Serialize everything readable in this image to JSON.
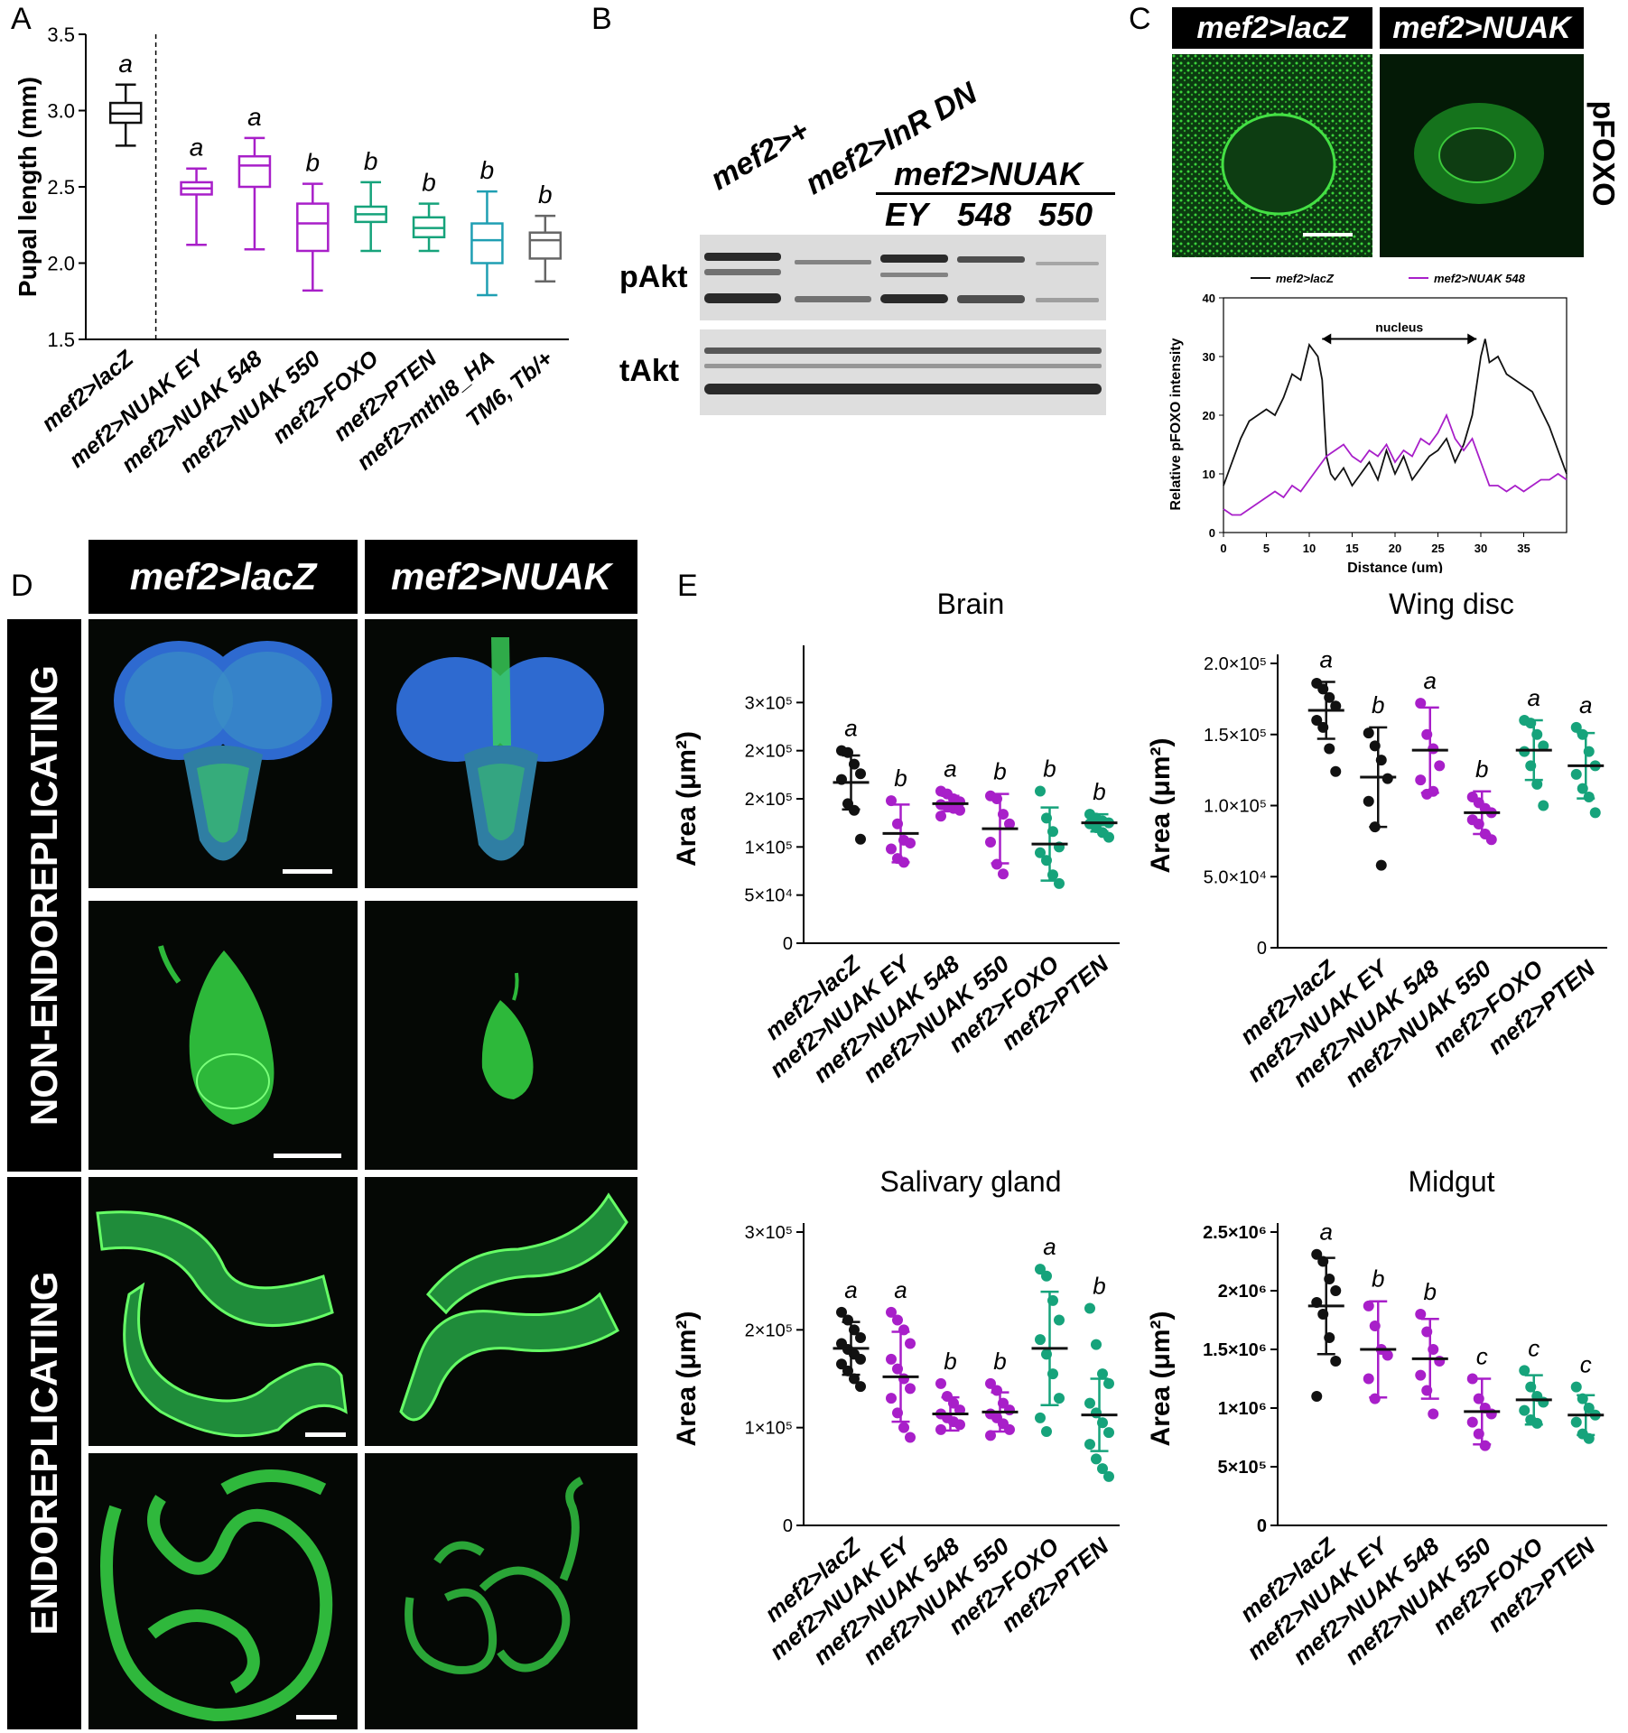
{
  "panel_letters": [
    "A",
    "B",
    "C",
    "D",
    "E"
  ],
  "colors": {
    "black": "#111111",
    "purple": "#a81fc9",
    "green": "#16a37b",
    "teal": "#1f9fb3",
    "grey": "#666666"
  },
  "panelB": {
    "lanes": [
      "mef2>+",
      "mef2>InR DN"
    ],
    "group_label": "mef2>NUAK",
    "sublanes": [
      "EY",
      "548",
      "550"
    ],
    "rows": [
      "pAkt",
      "tAkt"
    ]
  },
  "panelC": {
    "headers": [
      "mef2>lacZ",
      "mef2>NUAK"
    ],
    "side_label": "pFOXO",
    "nucleus_label": "nucleus"
  },
  "panelD": {
    "headers": [
      "mef2>lacZ",
      "mef2>NUAK"
    ],
    "row_groups": [
      "NON-ENDOREPLICATING",
      "ENDOREPLICATING"
    ]
  },
  "chart_data": [
    {
      "id": "A",
      "type": "box",
      "xlabel": "",
      "ylabel": "Pupal length (mm)",
      "ylim": [
        1.5,
        3.5
      ],
      "yticks": [
        "1.5",
        "2.0",
        "2.5",
        "3.0",
        "3.5"
      ],
      "categories": [
        "mef2>lacZ",
        "mef2>NUAK EY",
        "mef2>NUAK 548",
        "mef2>NUAK 550",
        "mef2>FOXO",
        "mef2>PTEN",
        "mef2>mthl8_HA",
        "TM6, Tb/+"
      ],
      "letters": [
        "a",
        "a",
        "a",
        "b",
        "b",
        "b",
        "b",
        "b"
      ],
      "color_keys": [
        "black",
        "purple",
        "purple",
        "purple",
        "green",
        "green",
        "teal",
        "grey"
      ],
      "boxes": [
        {
          "min": 2.77,
          "q1": 2.92,
          "median": 2.98,
          "q3": 3.05,
          "max": 3.17
        },
        {
          "min": 2.12,
          "q1": 2.45,
          "median": 2.49,
          "q3": 2.53,
          "max": 2.62
        },
        {
          "min": 2.09,
          "q1": 2.5,
          "median": 2.64,
          "q3": 2.7,
          "max": 2.82
        },
        {
          "min": 1.82,
          "q1": 2.08,
          "median": 2.26,
          "q3": 2.39,
          "max": 2.52
        },
        {
          "min": 2.08,
          "q1": 2.27,
          "median": 2.32,
          "q3": 2.37,
          "max": 2.53
        },
        {
          "min": 2.08,
          "q1": 2.17,
          "median": 2.23,
          "q3": 2.3,
          "max": 2.39
        },
        {
          "min": 1.79,
          "q1": 2.0,
          "median": 2.15,
          "q3": 2.26,
          "max": 2.47
        },
        {
          "min": 1.88,
          "q1": 2.03,
          "median": 2.15,
          "q3": 2.2,
          "max": 2.31
        }
      ]
    },
    {
      "id": "C",
      "type": "line",
      "xlabel": "Distance (um)",
      "ylabel": "Relative pFOXO intensity",
      "xlim": [
        0,
        40
      ],
      "ylim": [
        0,
        40
      ],
      "xticks": [
        "0",
        "5",
        "10",
        "15",
        "20",
        "25",
        "30",
        "35"
      ],
      "yticks": [
        "0",
        "10",
        "20",
        "30",
        "40"
      ],
      "series": [
        {
          "name": "mef2>lacZ",
          "color_key": "black",
          "x": [
            0,
            1,
            2,
            3,
            4,
            5,
            6,
            7,
            8,
            9,
            10,
            10.5,
            11,
            11.5,
            12,
            12.5,
            13,
            14,
            15,
            16,
            17,
            18,
            19,
            20,
            21,
            22,
            23,
            24,
            25,
            26,
            27,
            28,
            29,
            30,
            30.5,
            31,
            32,
            33,
            34,
            35,
            36,
            37,
            38,
            39,
            40
          ],
          "y": [
            8,
            12,
            16,
            19,
            20,
            21,
            20,
            23,
            27,
            26,
            32,
            31,
            30,
            26,
            13,
            10,
            9,
            11,
            8,
            10,
            12,
            9,
            14,
            10,
            13,
            9,
            11,
            13,
            14,
            16,
            12,
            15,
            20,
            30,
            33,
            29,
            30,
            27,
            26,
            25,
            24,
            21,
            18,
            14,
            10
          ]
        },
        {
          "name": "mef2>NUAK 548",
          "color_key": "purple",
          "x": [
            0,
            1,
            2,
            3,
            4,
            5,
            6,
            7,
            8,
            9,
            10,
            11,
            12,
            13,
            14,
            15,
            16,
            17,
            18,
            19,
            20,
            21,
            22,
            23,
            24,
            25,
            26,
            27,
            28,
            29,
            30,
            31,
            32,
            33,
            34,
            35,
            36,
            37,
            38,
            39,
            40
          ],
          "y": [
            4,
            3,
            3,
            4,
            5,
            6,
            7,
            6,
            8,
            7,
            9,
            11,
            13,
            14,
            15,
            13,
            12,
            14,
            13,
            15,
            12,
            14,
            13,
            16,
            15,
            17,
            20,
            16,
            14,
            16,
            12,
            8,
            8,
            7,
            8,
            7,
            8,
            9,
            9,
            10,
            9
          ]
        }
      ]
    },
    {
      "id": "E-brain",
      "type": "scatter",
      "title": "Brain",
      "ylabel": "Area (μm²)",
      "ylim": [
        0,
        300000
      ],
      "yticks": [
        "0",
        "5×10⁴",
        "1×10⁵",
        "2×10⁵",
        "2×10⁵",
        "3×10⁵"
      ],
      "ytick_values": [
        0,
        50000,
        100000,
        150000,
        200000,
        250000
      ],
      "categories": [
        "mef2>lacZ",
        "mef2>NUAK EY",
        "mef2>NUAK 548",
        "mef2>NUAK 550",
        "mef2>FOXO",
        "mef2>PTEN"
      ],
      "letters": [
        "a",
        "b",
        "a",
        "b",
        "b",
        "b"
      ],
      "color_keys": [
        "black",
        "purple",
        "purple",
        "purple",
        "green",
        "green"
      ],
      "means": [
        167000,
        114000,
        145000,
        119000,
        103000,
        125000
      ],
      "sds": [
        28000,
        30000,
        8000,
        36000,
        38000,
        9000
      ],
      "points": [
        [
          200000,
          198000,
          186000,
          176000,
          170000,
          145000,
          138000,
          108000
        ],
        [
          148000,
          124000,
          107000,
          104000,
          98000,
          88000,
          84000
        ],
        [
          158000,
          155000,
          150000,
          147000,
          144000,
          142000,
          140000,
          138000,
          132000
        ],
        [
          153000,
          150000,
          134000,
          124000,
          105000,
          82000,
          72000
        ],
        [
          158000,
          130000,
          116000,
          100000,
          94000,
          86000,
          71000,
          62000
        ],
        [
          134000,
          130000,
          127000,
          125000,
          124000,
          120000,
          115000,
          110000
        ]
      ]
    },
    {
      "id": "E-wing",
      "type": "scatter",
      "title": "Wing disc",
      "ylabel": "Area (μm²)",
      "ylim": [
        0,
        200000
      ],
      "yticks": [
        "0",
        "5.0×10⁴",
        "1.0×10⁵",
        "1.5×10⁵",
        "2.0×10⁵"
      ],
      "ytick_values": [
        0,
        50000,
        100000,
        150000,
        200000
      ],
      "categories": [
        "mef2>lacZ",
        "mef2>NUAK EY",
        "mef2>NUAK 548",
        "mef2>NUAK 550",
        "mef2>FOXO",
        "mef2>PTEN"
      ],
      "letters": [
        "a",
        "b",
        "a",
        "b",
        "a",
        "a"
      ],
      "color_keys": [
        "black",
        "black",
        "purple",
        "purple",
        "green",
        "green"
      ],
      "means": [
        167000,
        120000,
        139000,
        95000,
        139000,
        128000
      ],
      "sds": [
        20000,
        35000,
        30000,
        15000,
        21000,
        23000
      ],
      "points": [
        [
          186000,
          182000,
          176000,
          170000,
          160000,
          155000,
          140000,
          124000
        ],
        [
          151000,
          142000,
          132000,
          119000,
          103000,
          85000,
          58000
        ],
        [
          172000,
          150000,
          140000,
          128000,
          118000,
          108000,
          110000
        ],
        [
          106000,
          102000,
          98000,
          95000,
          90000,
          87000,
          80000,
          76000
        ],
        [
          160000,
          158000,
          150000,
          142000,
          138000,
          128000,
          115000,
          100000
        ],
        [
          155000,
          150000,
          138000,
          128000,
          122000,
          112000,
          106000,
          95000
        ]
      ]
    },
    {
      "id": "E-salivary",
      "type": "scatter",
      "title": "Salivary gland",
      "ylabel": "Area (μm²)",
      "ylim": [
        0,
        300000
      ],
      "yticks": [
        "0",
        "1×10⁵",
        "2×10⁵",
        "3×10⁵"
      ],
      "ytick_values": [
        0,
        100000,
        200000,
        300000
      ],
      "categories": [
        "mef2>lacZ",
        "mef2>NUAK EY",
        "mef2>NUAK 548",
        "mef2>NUAK 550",
        "mef2>FOXO",
        "mef2>PTEN"
      ],
      "letters": [
        "a",
        "a",
        "b",
        "b",
        "a",
        "b"
      ],
      "color_keys": [
        "black",
        "purple",
        "purple",
        "purple",
        "green",
        "green"
      ],
      "means": [
        181000,
        152000,
        114000,
        116000,
        181000,
        113000
      ],
      "sds": [
        27000,
        46000,
        17000,
        20000,
        58000,
        37000
      ],
      "points": [
        [
          218000,
          210000,
          200000,
          192000,
          186000,
          180000,
          175000,
          170000,
          165000,
          158000,
          150000,
          142000
        ],
        [
          218000,
          210000,
          200000,
          186000,
          170000,
          160000,
          150000,
          140000,
          130000,
          115000,
          100000,
          90000
        ],
        [
          145000,
          132000,
          125000,
          118000,
          114000,
          110000,
          106000,
          103000,
          98000
        ],
        [
          145000,
          138000,
          125000,
          118000,
          114000,
          110000,
          104000,
          98000,
          92000
        ],
        [
          262000,
          255000,
          230000,
          210000,
          190000,
          175000,
          155000,
          130000,
          110000,
          96000
        ],
        [
          222000,
          185000,
          155000,
          145000,
          125000,
          115000,
          105000,
          95000,
          83000,
          68000,
          58000,
          50000
        ]
      ]
    },
    {
      "id": "E-midgut",
      "type": "scatter",
      "title": "Midgut",
      "ylabel": "Area (μm²)",
      "ylim": [
        0,
        2500000
      ],
      "yticks": [
        "0",
        "5×10⁵",
        "1×10⁶",
        "1.5×10⁶",
        "2×10⁶",
        "2.5×10⁶"
      ],
      "ytick_values": [
        0,
        500000,
        1000000,
        1500000,
        2000000,
        2500000
      ],
      "categories": [
        "mef2>lacZ",
        "mef2>NUAK EY",
        "mef2>NUAK 548",
        "mef2>NUAK 550",
        "mef2>FOXO",
        "mef2>PTEN"
      ],
      "letters": [
        "a",
        "b",
        "b",
        "c",
        "c",
        "c"
      ],
      "color_keys": [
        "black",
        "purple",
        "purple",
        "purple",
        "green",
        "green"
      ],
      "means": [
        1870000,
        1500000,
        1420000,
        970000,
        1070000,
        940000
      ],
      "sds": [
        410000,
        410000,
        340000,
        280000,
        210000,
        170000
      ],
      "points": [
        [
          2310000,
          2250000,
          2100000,
          2000000,
          1900000,
          1800000,
          1600000,
          1400000,
          1100000
        ],
        [
          1870000,
          1700000,
          1500000,
          1450000,
          1250000,
          1080000
        ],
        [
          1800000,
          1650000,
          1500000,
          1400000,
          1280000,
          1150000,
          950000
        ],
        [
          1250000,
          1080000,
          1000000,
          950000,
          880000,
          780000,
          680000
        ],
        [
          1320000,
          1180000,
          1100000,
          1050000,
          980000,
          900000,
          870000
        ],
        [
          1180000,
          1080000,
          1000000,
          940000,
          880000,
          780000,
          740000
        ]
      ]
    }
  ]
}
